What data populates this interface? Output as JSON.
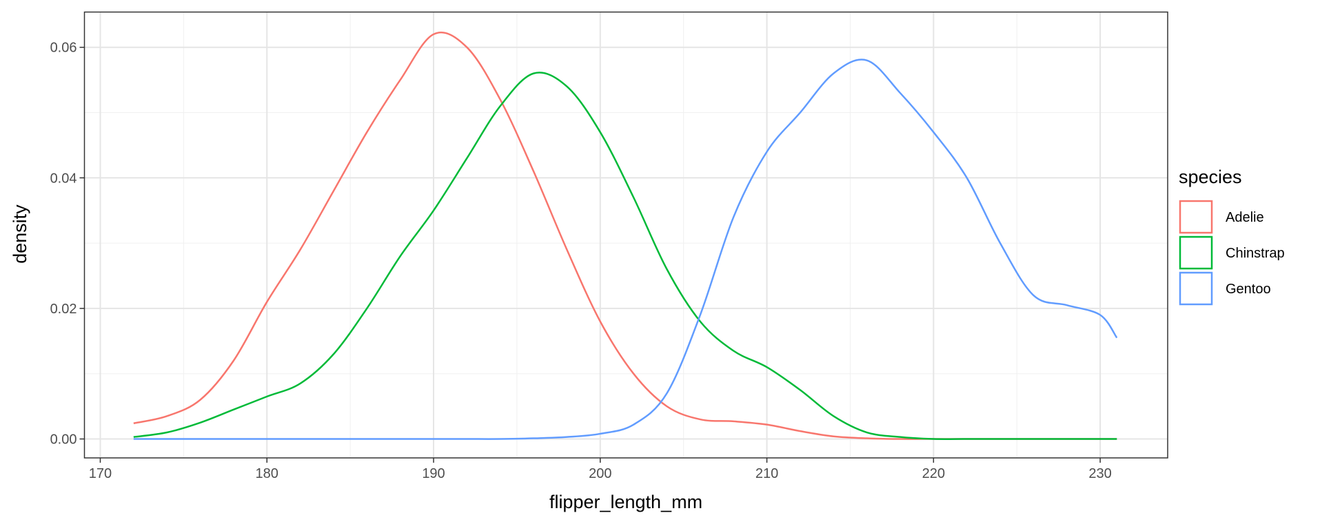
{
  "chart_data": {
    "type": "line",
    "x_label": "flipper_length_mm",
    "y_label": "density",
    "x": [
      172,
      174,
      176,
      178,
      180,
      182,
      184,
      186,
      188,
      190,
      192,
      194,
      196,
      198,
      200,
      202,
      204,
      206,
      208,
      210,
      212,
      214,
      216,
      218,
      220,
      222,
      224,
      226,
      228,
      230,
      231
    ],
    "series": [
      {
        "name": "Adelie",
        "color": "#f8766d",
        "values": [
          0.0024,
          0.0035,
          0.006,
          0.012,
          0.021,
          0.029,
          0.038,
          0.047,
          0.055,
          0.062,
          0.06,
          0.052,
          0.041,
          0.029,
          0.018,
          0.01,
          0.005,
          0.003,
          0.0027,
          0.0022,
          0.0012,
          0.0004,
          0.0001,
          0,
          0,
          0,
          0,
          0,
          0,
          0,
          0
        ]
      },
      {
        "name": "Chinstrap",
        "color": "#00ba38",
        "values": [
          0.0003,
          0.001,
          0.0025,
          0.0045,
          0.0065,
          0.0085,
          0.013,
          0.02,
          0.028,
          0.035,
          0.043,
          0.051,
          0.056,
          0.054,
          0.047,
          0.037,
          0.026,
          0.018,
          0.0135,
          0.011,
          0.0075,
          0.0035,
          0.001,
          0.0003,
          0,
          0,
          0,
          0,
          0,
          0,
          0
        ]
      },
      {
        "name": "Gentoo",
        "color": "#619cff",
        "values": [
          0,
          0,
          0,
          0,
          0,
          0,
          0,
          0,
          0,
          0,
          0,
          0,
          0.0001,
          0.0003,
          0.0008,
          0.0022,
          0.007,
          0.019,
          0.034,
          0.044,
          0.05,
          0.056,
          0.058,
          0.053,
          0.047,
          0.04,
          0.03,
          0.022,
          0.0205,
          0.019,
          0.0155
        ]
      }
    ],
    "legend_title": "species",
    "xlim": [
      169.05,
      234.05
    ],
    "xticks": [
      170,
      180,
      190,
      200,
      210,
      220,
      230
    ],
    "ylim": [
      -0.0029,
      0.0654
    ],
    "yticks": [
      {
        "value": 0,
        "label": "0.00"
      },
      0.02,
      0.04,
      0.06
    ],
    "grid": true,
    "legend": "right"
  }
}
